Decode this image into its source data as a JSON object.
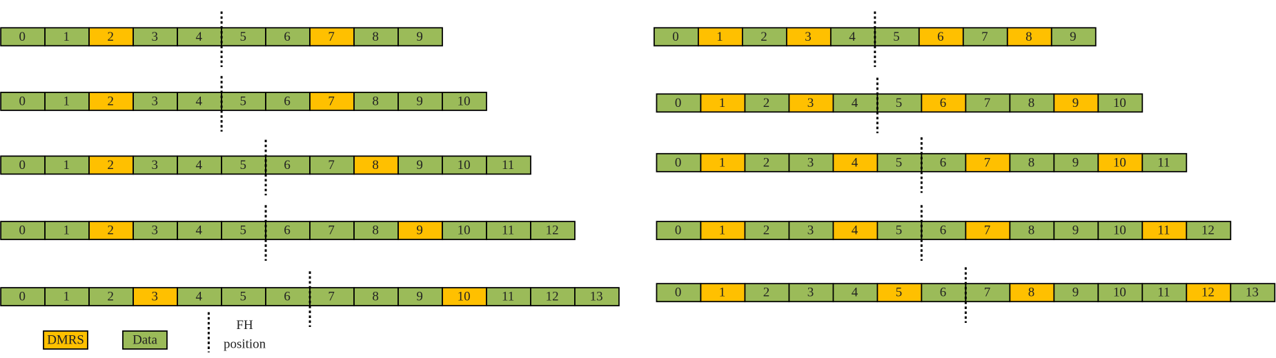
{
  "legend": [
    {
      "label": "DMRS",
      "color": "#ffc000"
    },
    {
      "label": "Data",
      "color": "#9bbb59"
    }
  ],
  "fh_label": [
    "FH",
    "position"
  ],
  "panels": [
    {
      "rows": [
        {
          "labels": [
            "0",
            "1",
            "2",
            "3",
            "4",
            "5",
            "6",
            "7",
            "8",
            "9"
          ],
          "dmrs": [
            2,
            7
          ],
          "fh_after": 4
        },
        {
          "labels": [
            "0",
            "1",
            "2",
            "3",
            "4",
            "5",
            "6",
            "7",
            "8",
            "9",
            "10"
          ],
          "dmrs": [
            2,
            7
          ],
          "fh_after": 4
        },
        {
          "labels": [
            "0",
            "1",
            "2",
            "3",
            "4",
            "5",
            "6",
            "7",
            "8",
            "9",
            "10",
            "11"
          ],
          "dmrs": [
            2,
            8
          ],
          "fh_after": 5
        },
        {
          "labels": [
            "0",
            "1",
            "2",
            "3",
            "4",
            "5",
            "6",
            "7",
            "8",
            "9",
            "10",
            "11",
            "12"
          ],
          "dmrs": [
            2,
            9
          ],
          "fh_after": 5
        },
        {
          "labels": [
            "0",
            "1",
            "2",
            "3",
            "4",
            "5",
            "6",
            "7",
            "8",
            "9",
            "10",
            "11",
            "12",
            "13"
          ],
          "dmrs": [
            3,
            10
          ],
          "fh_after": 6
        }
      ]
    },
    {
      "rows": [
        {
          "labels": [
            "0",
            "1",
            "2",
            "3",
            "4",
            "5",
            "6",
            "7",
            "8",
            "9"
          ],
          "dmrs": [
            1,
            3,
            6,
            8
          ],
          "fh_after": 4
        },
        {
          "labels": [
            "0",
            "1",
            "2",
            "3",
            "4",
            "5",
            "6",
            "7",
            "8",
            "9",
            "10"
          ],
          "dmrs": [
            1,
            3,
            6,
            9
          ],
          "fh_after": 4
        },
        {
          "labels": [
            "0",
            "1",
            "2",
            "3",
            "4",
            "5",
            "6",
            "7",
            "8",
            "9",
            "10",
            "11"
          ],
          "dmrs": [
            1,
            4,
            7,
            10
          ],
          "fh_after": 5
        },
        {
          "labels": [
            "0",
            "1",
            "2",
            "3",
            "4",
            "5",
            "6",
            "7",
            "8",
            "9",
            "10",
            "11",
            "12"
          ],
          "dmrs": [
            1,
            4,
            7,
            11
          ],
          "fh_after": 5
        },
        {
          "labels": [
            "0",
            "1",
            "2",
            "3",
            "4",
            "5",
            "6",
            "7",
            "8",
            "9",
            "10",
            "11",
            "12",
            "13"
          ],
          "dmrs": [
            1,
            5,
            8,
            12
          ],
          "fh_after": 6
        }
      ]
    }
  ]
}
